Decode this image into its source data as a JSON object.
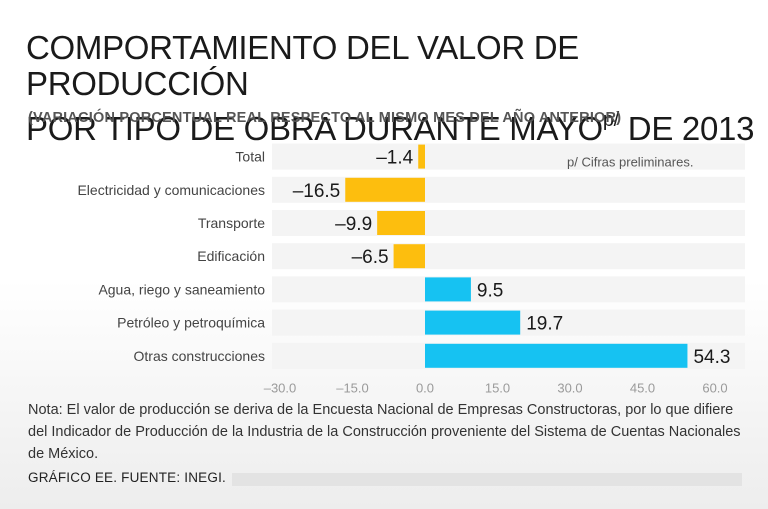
{
  "header": {
    "title_line1": "COMPORTAMIENTO DEL VALOR DE PRODUCCIÓN",
    "title_line2_pre": "POR TIPO DE OBRA DURANTE MAYO",
    "title_sup": "p/",
    "title_line2_post": " DE 2013",
    "subtitle": "(VARIACIÓN PORCENTUAL REAL RESPECTO AL MISMO MES DEL AÑO ANTERIOR)"
  },
  "footer": {
    "note": "Nota: El valor de producción se deriva de la Encuesta Nacional de Empresas Constructoras, por lo que difiere del Indicador de Producción de la Industria de la Construcción proveniente del Sistema de Cuentas Nacionales de México.",
    "source": "GRÁFICO EE. FUENTE: INEGI."
  },
  "colors": {
    "negative": "#FDBE0E",
    "positive": "#16C2F2",
    "row_band": "#f4f4f4",
    "tick": "#9a9a9a"
  },
  "chart_data": {
    "type": "bar",
    "orientation": "horizontal",
    "categories": [
      "Total",
      "Electricidad y comunicaciones",
      "Transporte",
      "Edificación",
      "Agua, riego y saneamiento",
      "Petróleo y petroquímica",
      "Otras construcciones"
    ],
    "values": [
      -1.4,
      -16.5,
      -9.9,
      -6.5,
      9.5,
      19.7,
      54.3
    ],
    "value_labels": [
      "–1.4",
      "–16.5",
      "–9.9",
      "–6.5",
      "9.5",
      "19.7",
      "54.3"
    ],
    "xlim": [
      -30,
      60
    ],
    "ticks": [
      -30,
      -15,
      0,
      15,
      30,
      45,
      60
    ],
    "tick_labels": [
      "–30.0",
      "–15.0",
      "0.0",
      "15.0",
      "30.0",
      "45.0",
      "60.0"
    ],
    "annotation": "p/ Cifras preliminares.",
    "grid": false
  }
}
